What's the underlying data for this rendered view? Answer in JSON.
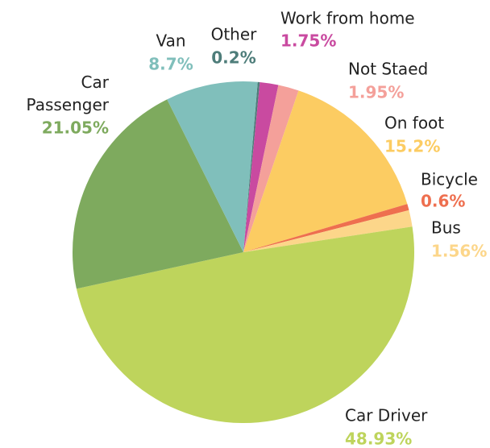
{
  "chart_data": {
    "type": "pie",
    "categories": [
      "Other",
      "Work from home",
      "Not Staed",
      "On foot",
      "Bicycle",
      "Bus",
      "Car Driver",
      "Car Passenger",
      "Van"
    ],
    "values": [
      0.2,
      1.75,
      1.95,
      15.2,
      0.6,
      1.56,
      48.93,
      21.05,
      8.7
    ],
    "value_labels": [
      "0.2%",
      "1.75%",
      "1.95%",
      "15.2%",
      "0.6%",
      "1.56%",
      "48.93%",
      "21.05%",
      "8.7%"
    ],
    "colors": [
      "#4e7d7a",
      "#c94aa0",
      "#f4a09a",
      "#fccc62",
      "#ee6f4f",
      "#fcd68a",
      "#bed45c",
      "#7eaa5e",
      "#80bfbb"
    ]
  }
}
